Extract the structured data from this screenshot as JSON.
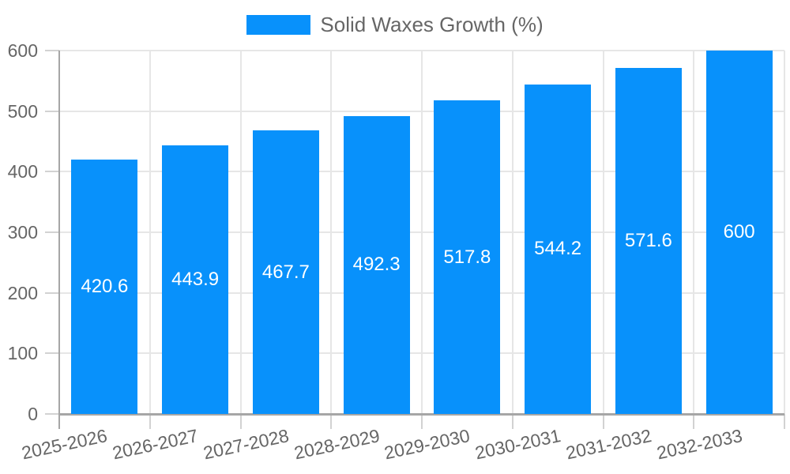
{
  "chart_data": {
    "type": "bar",
    "title": "",
    "series_name": "Solid Waxes Growth (%)",
    "categories": [
      "2025-2026",
      "2026-2027",
      "2027-2028",
      "2028-2029",
      "2029-2030",
      "2030-2031",
      "2031-2032",
      "2032-2033"
    ],
    "values": [
      420.6,
      443.9,
      467.7,
      492.3,
      517.8,
      544.2,
      571.6,
      600
    ],
    "value_labels": [
      "420.6",
      "443.9",
      "467.7",
      "492.3",
      "517.8",
      "544.2",
      "571.6",
      "600"
    ],
    "y_ticks": [
      0,
      100,
      200,
      300,
      400,
      500,
      600
    ],
    "ylim": [
      0,
      600
    ],
    "xlabel": "",
    "ylabel": "",
    "grid": true,
    "legend_position": "top",
    "colors": {
      "bar": "#0891FB",
      "value_label": "#FFFFFF",
      "axis_text": "#666666",
      "grid": "#E6E6E6",
      "tick": "#D2D2D2",
      "axis_line": "#A6A6A6",
      "background": "#FFFFFF"
    }
  }
}
